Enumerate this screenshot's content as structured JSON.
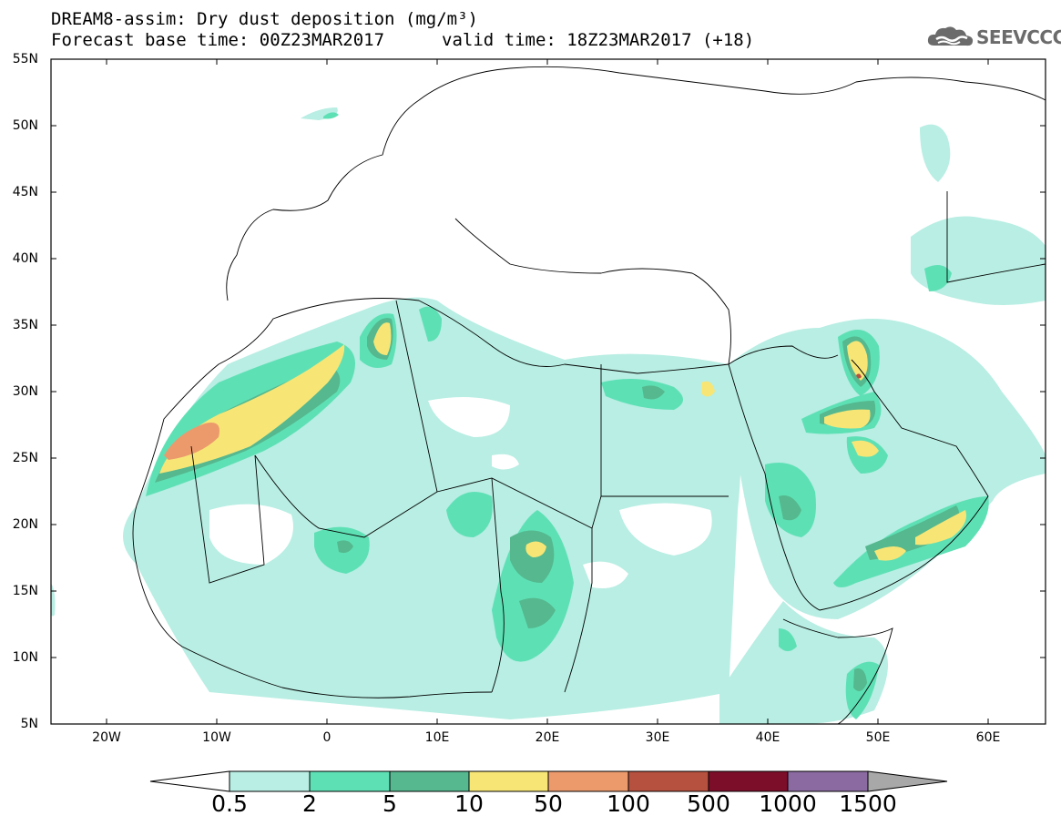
{
  "title_line1": "DREAM8-assim: Dry dust deposition (mg/m³)",
  "title_line2_base": "Forecast base time: 00Z23MAR2017",
  "title_line2_valid": "valid time: 18Z23MAR2017 (+18)",
  "logo_text": "SEEVCCC",
  "logo_icon": "cloud-logo-icon",
  "lat_ticks": [
    "55N",
    "50N",
    "45N",
    "40N",
    "35N",
    "30N",
    "25N",
    "20N",
    "15N",
    "10N",
    "5N"
  ],
  "lon_ticks": [
    "20W",
    "10W",
    "0",
    "10E",
    "20E",
    "30E",
    "40E",
    "50E",
    "60E"
  ],
  "colorbar": {
    "labels": [
      "0.5",
      "2",
      "5",
      "10",
      "50",
      "100",
      "500",
      "1000",
      "1500"
    ],
    "colors": [
      "#b8eee3",
      "#5ee0b5",
      "#55b88e",
      "#f7e676",
      "#ec9a6c",
      "#b6503f",
      "#7c0e2a",
      "#8a6aa0",
      "#a8a8a8"
    ],
    "under_color": "#ffffff"
  }
}
